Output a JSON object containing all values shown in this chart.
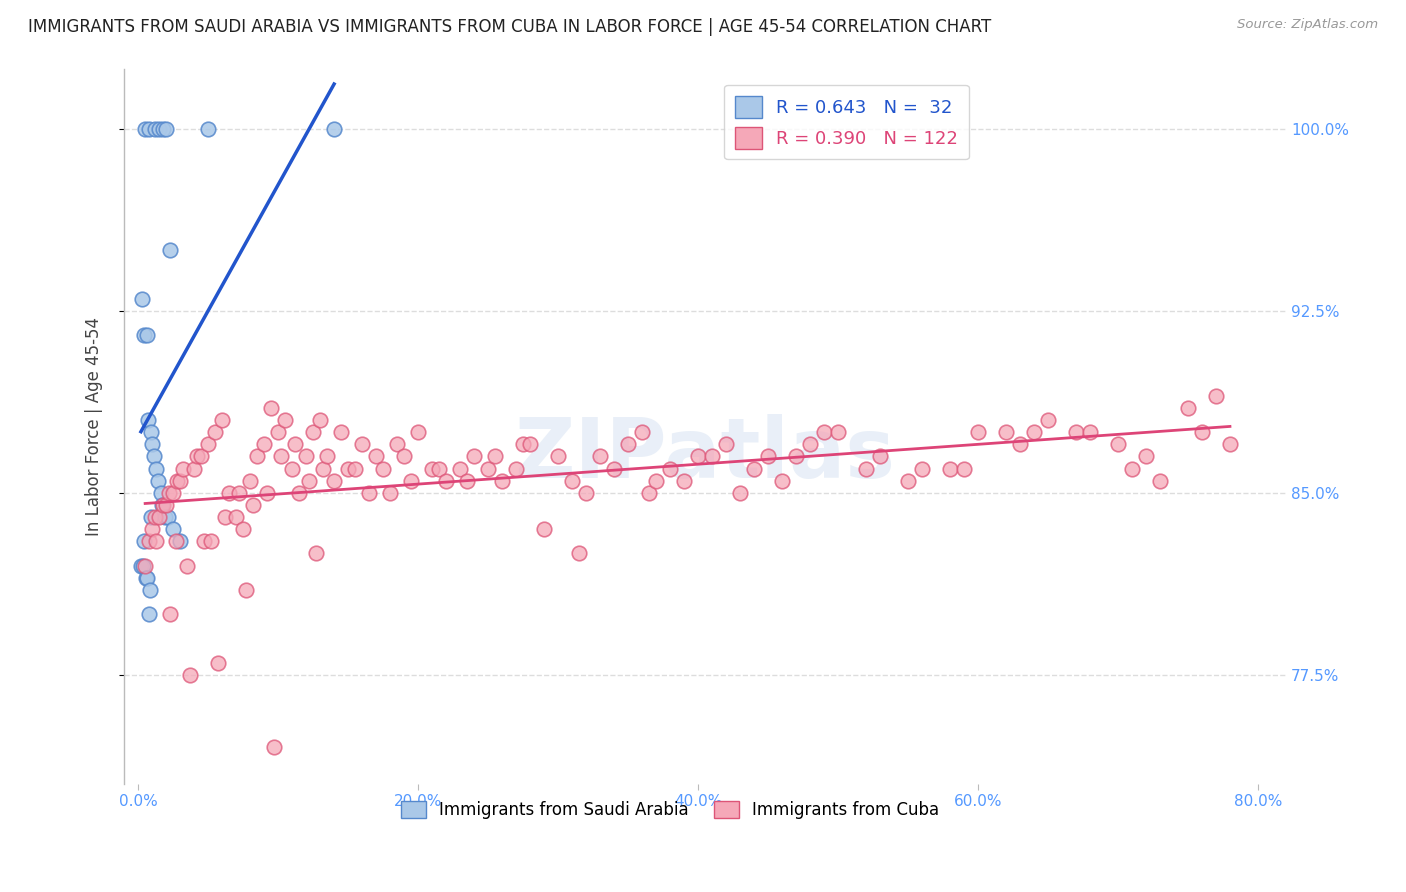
{
  "title": "IMMIGRANTS FROM SAUDI ARABIA VS IMMIGRANTS FROM CUBA IN LABOR FORCE | AGE 45-54 CORRELATION CHART",
  "source": "Source: ZipAtlas.com",
  "ylabel": "In Labor Force | Age 45-54",
  "xlim": [
    -1.0,
    82.0
  ],
  "ylim": [
    73.0,
    102.5
  ],
  "yticks": [
    77.5,
    85.0,
    92.5,
    100.0
  ],
  "xticks": [
    0.0,
    20.0,
    40.0,
    60.0,
    80.0
  ],
  "saudi_color": "#aac8e8",
  "cuba_color": "#f5a8b8",
  "saudi_edge": "#5588cc",
  "cuba_edge": "#dd5577",
  "saudi_line_color": "#2255cc",
  "cuba_line_color": "#dd4477",
  "saudi_R": 0.643,
  "saudi_N": 32,
  "cuba_R": 0.39,
  "cuba_N": 122,
  "background_color": "#ffffff",
  "grid_color": "#dddddd",
  "axis_color": "#bbbbbb",
  "title_color": "#222222",
  "label_color": "#444444",
  "tick_color": "#5599ff",
  "watermark": "ZIPatlas",
  "saudi_x": [
    0.2,
    0.3,
    0.35,
    0.4,
    0.45,
    0.5,
    0.55,
    0.6,
    0.65,
    0.7,
    0.75,
    0.8,
    0.85,
    0.9,
    0.95,
    1.0,
    1.1,
    1.2,
    1.3,
    1.4,
    1.5,
    1.6,
    1.7,
    1.8,
    1.9,
    2.0,
    2.1,
    2.3,
    2.5,
    3.0,
    5.0,
    14.0
  ],
  "saudi_y": [
    82.0,
    93.0,
    82.0,
    91.5,
    83.0,
    100.0,
    81.5,
    91.5,
    81.5,
    88.0,
    80.0,
    100.0,
    81.0,
    87.5,
    84.0,
    87.0,
    86.5,
    100.0,
    86.0,
    85.5,
    100.0,
    85.0,
    84.5,
    100.0,
    84.0,
    100.0,
    84.0,
    95.0,
    83.5,
    83.0,
    100.0,
    100.0
  ],
  "cuba_x": [
    0.5,
    0.8,
    1.0,
    1.2,
    1.3,
    1.5,
    1.8,
    2.0,
    2.2,
    2.3,
    2.5,
    2.7,
    2.8,
    3.0,
    3.2,
    3.5,
    3.7,
    4.0,
    4.2,
    4.5,
    4.7,
    5.0,
    5.2,
    5.5,
    5.7,
    6.0,
    6.2,
    6.5,
    7.0,
    7.2,
    7.5,
    7.7,
    8.0,
    8.2,
    8.5,
    9.0,
    9.2,
    9.5,
    9.7,
    10.0,
    10.2,
    10.5,
    11.0,
    11.2,
    11.5,
    12.0,
    12.2,
    12.5,
    12.7,
    13.0,
    13.2,
    13.5,
    14.0,
    14.5,
    15.0,
    15.5,
    16.0,
    16.5,
    17.0,
    17.5,
    18.0,
    18.5,
    19.0,
    19.5,
    20.0,
    21.0,
    21.5,
    22.0,
    23.0,
    23.5,
    24.0,
    25.0,
    25.5,
    26.0,
    27.0,
    27.5,
    28.0,
    29.0,
    30.0,
    31.0,
    31.5,
    32.0,
    33.0,
    34.0,
    35.0,
    36.0,
    36.5,
    37.0,
    38.0,
    39.0,
    40.0,
    41.0,
    42.0,
    43.0,
    44.0,
    45.0,
    46.0,
    47.0,
    48.0,
    49.0,
    50.0,
    52.0,
    53.0,
    55.0,
    56.0,
    58.0,
    59.0,
    60.0,
    62.0,
    63.0,
    64.0,
    65.0,
    67.0,
    68.0,
    70.0,
    71.0,
    72.0,
    73.0,
    75.0,
    76.0,
    77.0,
    78.0
  ],
  "cuba_y": [
    82.0,
    83.0,
    83.5,
    84.0,
    83.0,
    84.0,
    84.5,
    84.5,
    85.0,
    80.0,
    85.0,
    83.0,
    85.5,
    85.5,
    86.0,
    82.0,
    77.5,
    86.0,
    86.5,
    86.5,
    83.0,
    87.0,
    83.0,
    87.5,
    78.0,
    88.0,
    84.0,
    85.0,
    84.0,
    85.0,
    83.5,
    81.0,
    85.5,
    84.5,
    86.5,
    87.0,
    85.0,
    88.5,
    74.5,
    87.5,
    86.5,
    88.0,
    86.0,
    87.0,
    85.0,
    86.5,
    85.5,
    87.5,
    82.5,
    88.0,
    86.0,
    86.5,
    85.5,
    87.5,
    86.0,
    86.0,
    87.0,
    85.0,
    86.5,
    86.0,
    85.0,
    87.0,
    86.5,
    85.5,
    87.5,
    86.0,
    86.0,
    85.5,
    86.0,
    85.5,
    86.5,
    86.0,
    86.5,
    85.5,
    86.0,
    87.0,
    87.0,
    83.5,
    86.5,
    85.5,
    82.5,
    85.0,
    86.5,
    86.0,
    87.0,
    87.5,
    85.0,
    85.5,
    86.0,
    85.5,
    86.5,
    86.5,
    87.0,
    85.0,
    86.0,
    86.5,
    85.5,
    86.5,
    87.0,
    87.5,
    87.5,
    86.0,
    86.5,
    85.5,
    86.0,
    86.0,
    86.0,
    87.5,
    87.5,
    87.0,
    87.5,
    88.0,
    87.5,
    87.5,
    87.0,
    86.0,
    86.5,
    85.5,
    88.5,
    87.5,
    89.0,
    87.0
  ]
}
